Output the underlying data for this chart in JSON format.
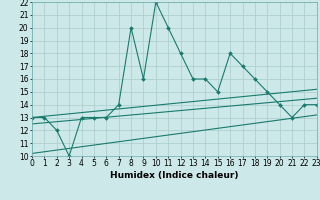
{
  "xlabel": "Humidex (Indice chaleur)",
  "x_main": [
    0,
    1,
    2,
    3,
    4,
    5,
    6,
    7,
    8,
    9,
    10,
    11,
    12,
    13,
    14,
    15,
    16,
    17,
    18,
    19,
    20,
    21,
    22,
    23
  ],
  "y_main": [
    13,
    13,
    12,
    10,
    13,
    13,
    13,
    14,
    20,
    16,
    22,
    20,
    18,
    16,
    16,
    15,
    18,
    17,
    16,
    15,
    14,
    13,
    14,
    14
  ],
  "y_line1_start": 13.0,
  "y_line1_end": 15.2,
  "y_line2_start": 12.5,
  "y_line2_end": 14.5,
  "y_line3_start": 10.2,
  "y_line3_end": 13.2,
  "ylim_min": 10,
  "ylim_max": 22,
  "xlim_min": 0,
  "xlim_max": 23,
  "yticks": [
    10,
    11,
    12,
    13,
    14,
    15,
    16,
    17,
    18,
    19,
    20,
    21,
    22
  ],
  "xticks": [
    0,
    1,
    2,
    3,
    4,
    5,
    6,
    7,
    8,
    9,
    10,
    11,
    12,
    13,
    14,
    15,
    16,
    17,
    18,
    19,
    20,
    21,
    22,
    23
  ],
  "line_color": "#1a7a6e",
  "bg_color": "#cce8e8",
  "grid_color": "#aacccc",
  "tick_fontsize": 5.5,
  "xlabel_fontsize": 6.5
}
